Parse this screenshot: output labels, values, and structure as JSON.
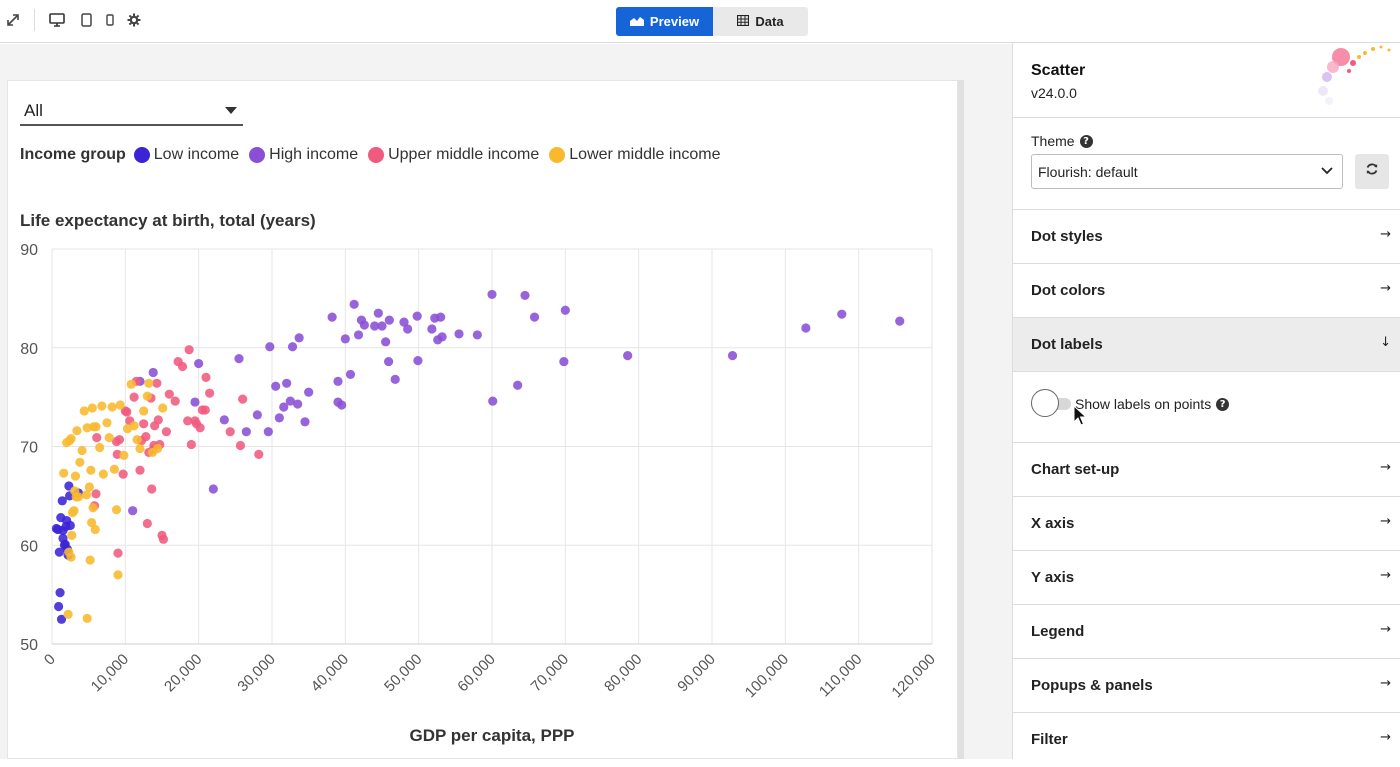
{
  "toolbar": {
    "icons": [
      "expand-icon",
      "desktop-icon",
      "tablet-icon",
      "mobile-icon",
      "gear-icon"
    ],
    "preview_label": "Preview",
    "data_label": "Data"
  },
  "chart_controls": {
    "filter_value": "All",
    "legend_title": "Income group",
    "legend_items": [
      {
        "label": "Low income",
        "color": "#3b23d6"
      },
      {
        "label": "High income",
        "color": "#8a4fd6"
      },
      {
        "label": "Upper middle income",
        "color": "#f05a7e"
      },
      {
        "label": "Lower middle income",
        "color": "#f8b92d"
      }
    ]
  },
  "chart_data": {
    "type": "scatter",
    "title": "",
    "xlabel": "GDP per capita, PPP",
    "ylabel": "Life expectancy at birth, total (years)",
    "xlim": [
      0,
      120000
    ],
    "ylim": [
      50,
      90
    ],
    "x_ticks": [
      0,
      10000,
      20000,
      30000,
      40000,
      50000,
      60000,
      70000,
      80000,
      90000,
      100000,
      110000,
      120000
    ],
    "x_tick_labels": [
      "0",
      "10,000",
      "20,000",
      "30,000",
      "40,000",
      "50,000",
      "60,000",
      "70,000",
      "80,000",
      "90,000",
      "100,000",
      "110,000",
      "120,000"
    ],
    "y_ticks": [
      50,
      60,
      70,
      80,
      90
    ],
    "grid": true,
    "legend_position": "top-left",
    "series": [
      {
        "name": "Low income",
        "color": "#3b23d6",
        "points": [
          [
            600,
            61.7
          ],
          [
            1000,
            59.3
          ],
          [
            1200,
            62.8
          ],
          [
            1500,
            61.5
          ],
          [
            1800,
            60.1
          ],
          [
            2000,
            62.5
          ],
          [
            2200,
            59.0
          ],
          [
            1100,
            55.2
          ],
          [
            900,
            53.8
          ],
          [
            1300,
            52.5
          ],
          [
            1400,
            64.5
          ],
          [
            2300,
            66.0
          ],
          [
            2400,
            65.0
          ],
          [
            3600,
            65.3
          ],
          [
            1700,
            60.0
          ],
          [
            2100,
            59.6
          ],
          [
            1900,
            61.9
          ],
          [
            800,
            61.6
          ],
          [
            1500,
            60.7
          ],
          [
            2500,
            62.0
          ]
        ]
      },
      {
        "name": "High income",
        "color": "#8a4fd6",
        "points": [
          [
            13800,
            77.5
          ],
          [
            12000,
            76.6
          ],
          [
            20000,
            78.4
          ],
          [
            19500,
            74.5
          ],
          [
            22000,
            65.7
          ],
          [
            23500,
            72.7
          ],
          [
            25500,
            78.9
          ],
          [
            26500,
            71.5
          ],
          [
            28000,
            73.2
          ],
          [
            29500,
            71.5
          ],
          [
            30500,
            76.1
          ],
          [
            31000,
            72.9
          ],
          [
            32000,
            76.4
          ],
          [
            32500,
            74.6
          ],
          [
            33500,
            74.3
          ],
          [
            34500,
            72.5
          ],
          [
            35000,
            75.5
          ],
          [
            32800,
            80.1
          ],
          [
            33700,
            81.0
          ],
          [
            29700,
            80.1
          ],
          [
            38200,
            83.1
          ],
          [
            39000,
            74.5
          ],
          [
            39500,
            74.2
          ],
          [
            40000,
            80.9
          ],
          [
            40700,
            77.3
          ],
          [
            41200,
            84.4
          ],
          [
            41800,
            81.3
          ],
          [
            42200,
            82.8
          ],
          [
            42600,
            82.3
          ],
          [
            44000,
            82.2
          ],
          [
            44500,
            83.5
          ],
          [
            45000,
            82.2
          ],
          [
            45500,
            80.6
          ],
          [
            46000,
            82.8
          ],
          [
            45900,
            78.6
          ],
          [
            46800,
            76.8
          ],
          [
            48000,
            82.6
          ],
          [
            48500,
            81.9
          ],
          [
            49800,
            83.2
          ],
          [
            49900,
            78.7
          ],
          [
            51800,
            81.9
          ],
          [
            52200,
            83.0
          ],
          [
            52600,
            80.8
          ],
          [
            53000,
            83.1
          ],
          [
            53200,
            81.1
          ],
          [
            55500,
            81.4
          ],
          [
            58000,
            81.3
          ],
          [
            60000,
            85.4
          ],
          [
            60100,
            74.6
          ],
          [
            63500,
            76.2
          ],
          [
            64500,
            85.3
          ],
          [
            65800,
            83.1
          ],
          [
            69800,
            78.6
          ],
          [
            70000,
            83.8
          ],
          [
            78500,
            79.2
          ],
          [
            92800,
            79.2
          ],
          [
            102800,
            82.0
          ],
          [
            107700,
            83.4
          ],
          [
            115600,
            82.7
          ],
          [
            11000,
            63.5
          ],
          [
            39000,
            76.6
          ],
          [
            31600,
            74.0
          ]
        ]
      },
      {
        "name": "Upper middle income",
        "color": "#f05a7e",
        "points": [
          [
            8800,
            70.5
          ],
          [
            9200,
            70.7
          ],
          [
            9700,
            67.2
          ],
          [
            10200,
            73.5
          ],
          [
            10600,
            72.6
          ],
          [
            11200,
            75.0
          ],
          [
            11500,
            76.6
          ],
          [
            12000,
            67.6
          ],
          [
            12500,
            72.3
          ],
          [
            12800,
            71.0
          ],
          [
            13000,
            62.2
          ],
          [
            13200,
            69.4
          ],
          [
            13500,
            74.9
          ],
          [
            13600,
            65.7
          ],
          [
            13800,
            69.7
          ],
          [
            14000,
            72.1
          ],
          [
            14300,
            76.4
          ],
          [
            14500,
            72.7
          ],
          [
            14700,
            70.2
          ],
          [
            15000,
            61.0
          ],
          [
            15200,
            60.6
          ],
          [
            15600,
            71.5
          ],
          [
            16000,
            75.3
          ],
          [
            16800,
            74.6
          ],
          [
            17200,
            78.6
          ],
          [
            17800,
            78.1
          ],
          [
            18500,
            72.6
          ],
          [
            18700,
            79.8
          ],
          [
            19000,
            70.2
          ],
          [
            19500,
            72.6
          ],
          [
            19700,
            72.3
          ],
          [
            20200,
            71.9
          ],
          [
            20500,
            73.7
          ],
          [
            20900,
            73.7
          ],
          [
            21000,
            77.0
          ],
          [
            21500,
            75.4
          ],
          [
            24300,
            71.5
          ],
          [
            25700,
            70.1
          ],
          [
            26000,
            74.8
          ],
          [
            28200,
            69.2
          ],
          [
            9000,
            59.2
          ],
          [
            6100,
            70.9
          ],
          [
            6000,
            65.2
          ],
          [
            5800,
            64.0
          ],
          [
            10000,
            73.6
          ],
          [
            8900,
            69.2
          ],
          [
            12200,
            70.6
          ],
          [
            13900,
            70.1
          ]
        ]
      },
      {
        "name": "Lower middle income",
        "color": "#f8b92d",
        "points": [
          [
            1600,
            67.3
          ],
          [
            2000,
            70.4
          ],
          [
            2400,
            70.6
          ],
          [
            2600,
            70.8
          ],
          [
            2800,
            63.3
          ],
          [
            3000,
            63.5
          ],
          [
            3200,
            67.0
          ],
          [
            3400,
            71.6
          ],
          [
            3600,
            64.9
          ],
          [
            3800,
            68.4
          ],
          [
            4100,
            69.6
          ],
          [
            4400,
            73.6
          ],
          [
            4800,
            71.9
          ],
          [
            5100,
            65.9
          ],
          [
            5300,
            67.6
          ],
          [
            5500,
            73.9
          ],
          [
            5700,
            72.0
          ],
          [
            6000,
            72.0
          ],
          [
            6500,
            69.9
          ],
          [
            6800,
            74.1
          ],
          [
            7000,
            67.2
          ],
          [
            7500,
            72.4
          ],
          [
            7800,
            70.9
          ],
          [
            8200,
            74.0
          ],
          [
            8500,
            67.7
          ],
          [
            8800,
            63.6
          ],
          [
            9000,
            57.0
          ],
          [
            9300,
            74.2
          ],
          [
            9800,
            69.1
          ],
          [
            10300,
            71.8
          ],
          [
            10800,
            76.3
          ],
          [
            11200,
            72.1
          ],
          [
            11600,
            70.7
          ],
          [
            12000,
            69.8
          ],
          [
            12500,
            73.6
          ],
          [
            13000,
            75.1
          ],
          [
            13200,
            76.4
          ],
          [
            13700,
            69.4
          ],
          [
            14400,
            69.8
          ],
          [
            15100,
            73.9
          ],
          [
            2300,
            59.3
          ],
          [
            2600,
            58.8
          ],
          [
            5200,
            58.5
          ],
          [
            4800,
            52.6
          ],
          [
            2200,
            53.0
          ],
          [
            5400,
            62.3
          ],
          [
            5900,
            61.6
          ],
          [
            5600,
            63.8
          ],
          [
            4700,
            65.1
          ],
          [
            2700,
            61.0
          ],
          [
            3100,
            65.5
          ],
          [
            3300,
            64.9
          ]
        ]
      }
    ]
  },
  "panel": {
    "title": "Scatter",
    "version": "v24.0.0",
    "theme_label": "Theme",
    "theme_value": "Flourish: default",
    "sections_top": [
      {
        "label": "Dot styles"
      },
      {
        "label": "Dot colors"
      }
    ],
    "open_section": {
      "label": "Dot labels",
      "toggle_label": "Show labels on points",
      "toggle_on": false
    },
    "sections_bottom": [
      {
        "label": "Chart set-up"
      },
      {
        "label": "X axis"
      },
      {
        "label": "Y axis"
      },
      {
        "label": "Legend"
      },
      {
        "label": "Popups & panels"
      },
      {
        "label": "Filter"
      }
    ]
  }
}
